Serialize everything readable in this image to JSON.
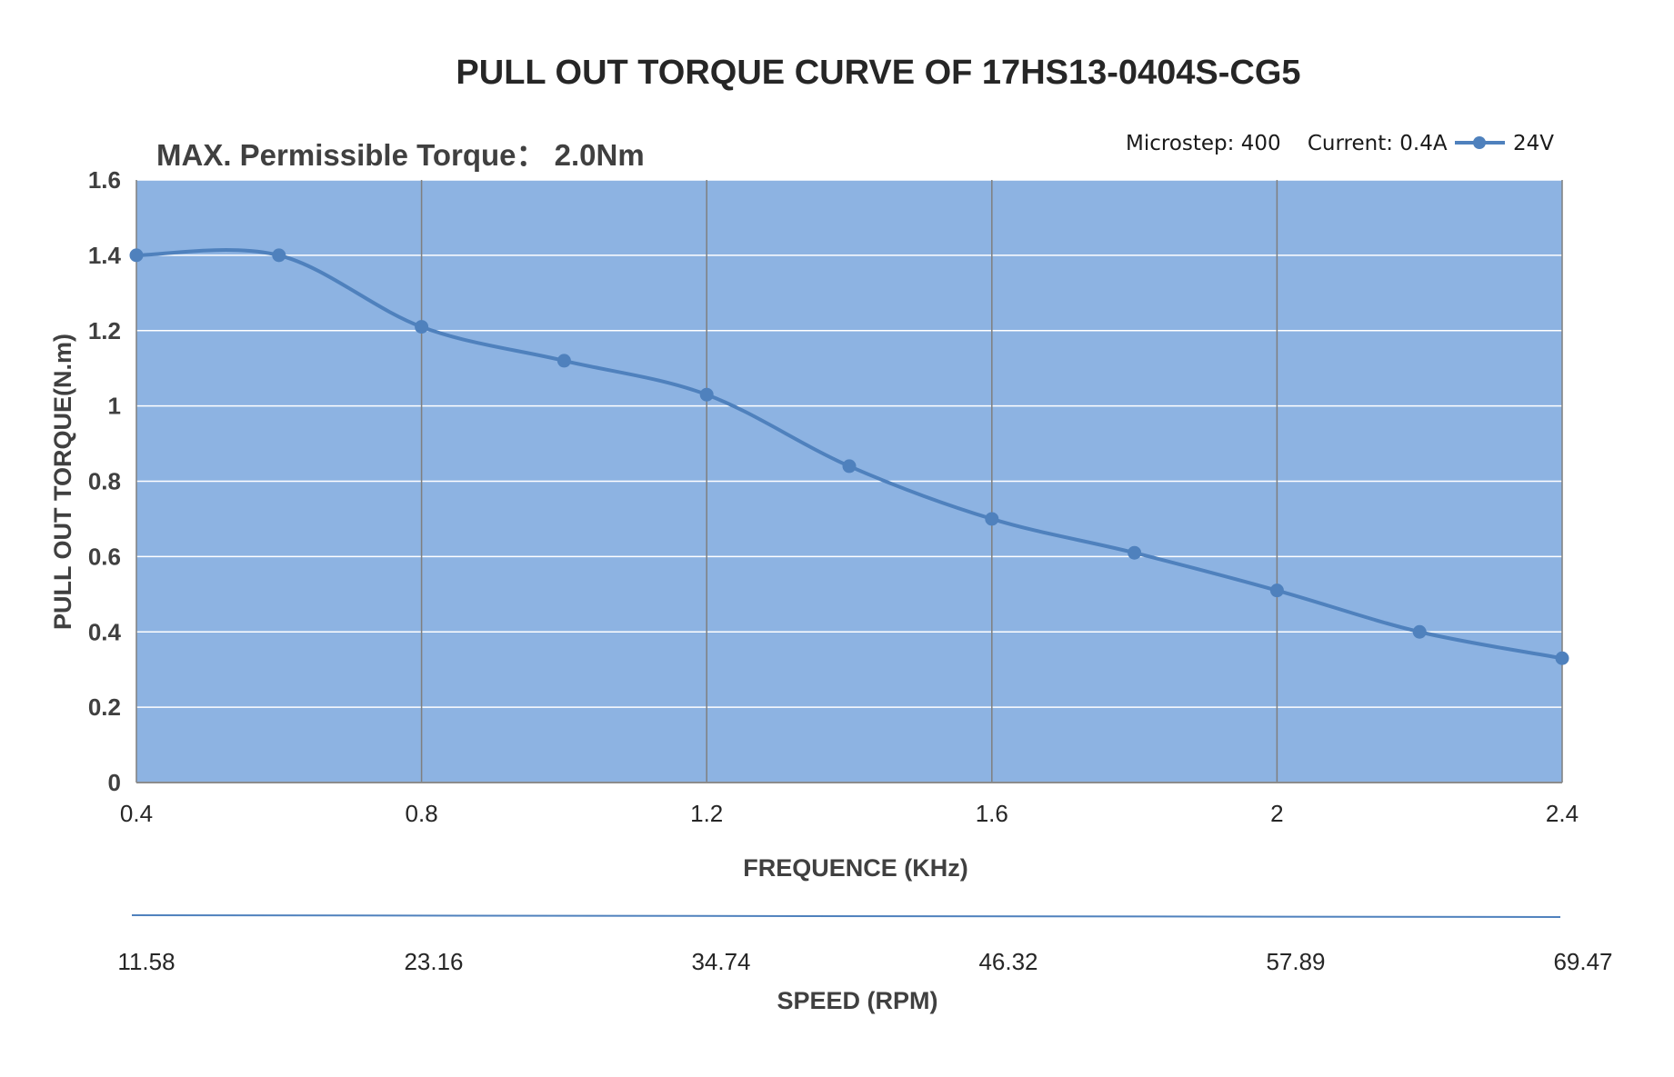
{
  "chart_data": {
    "type": "line",
    "title": "PULL OUT TORQUE CURVE OF 17HS13-0404S-CG5",
    "subtitle": "MAX. Permissible Torque： 2.0Nm",
    "xlabel": "FREQUENCE (KHz)",
    "ylabel": "PULL OUT TORQUE(N.m)",
    "secondary_xlabel": "SPEED (RPM)",
    "xlim": [
      0.4,
      2.4
    ],
    "ylim": [
      0,
      1.6
    ],
    "x_ticks": [
      "0.4",
      "0.8",
      "1.2",
      "1.6",
      "2",
      "2.4"
    ],
    "y_ticks": [
      "0",
      "0.2",
      "0.4",
      "0.6",
      "0.8",
      "1",
      "1.2",
      "1.4",
      "1.6"
    ],
    "secondary_x_ticks": [
      "11.58",
      "23.16",
      "34.74",
      "46.32",
      "57.89",
      "69.47"
    ],
    "grid": true,
    "legend": {
      "placement": "top-right",
      "conditions": "Microstep: 400    Current: 0.4A"
    },
    "series": [
      {
        "name": "24V",
        "x": [
          0.4,
          0.6,
          0.8,
          1.0,
          1.2,
          1.4,
          1.6,
          1.8,
          2.0,
          2.2,
          2.4
        ],
        "y": [
          1.4,
          1.4,
          1.21,
          1.12,
          1.03,
          0.84,
          0.7,
          0.61,
          0.51,
          0.4,
          0.33
        ]
      }
    ],
    "colors": {
      "plot_background": "#8db3e2",
      "line": "#4f81bd",
      "vertical_grid": "#7f7f7f",
      "horizontal_grid": "#ffffff"
    }
  }
}
